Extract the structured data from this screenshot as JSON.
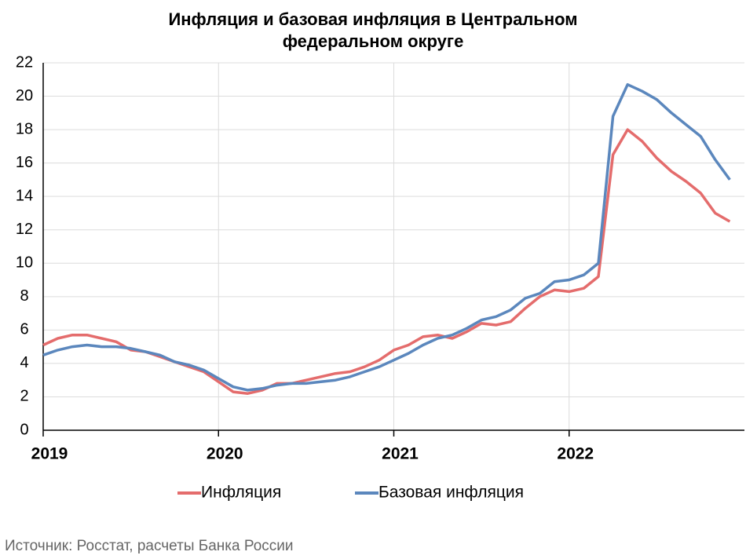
{
  "chart_data": {
    "type": "line",
    "title": "Инфляция и базовая инфляция в Центральном федеральном округе",
    "categories": [
      "2019",
      null,
      null,
      null,
      null,
      null,
      null,
      null,
      null,
      null,
      null,
      null,
      "2020",
      null,
      null,
      null,
      null,
      null,
      null,
      null,
      null,
      null,
      null,
      null,
      "2021",
      null,
      null,
      null,
      null,
      null,
      null,
      null,
      null,
      null,
      null,
      null,
      "2022",
      null,
      null,
      null,
      null,
      null,
      null,
      null,
      null,
      null,
      null,
      null
    ],
    "series": [
      {
        "name": "Инфляция",
        "color": "#e46c6c",
        "values": [
          5.1,
          5.5,
          5.7,
          5.7,
          5.5,
          5.3,
          4.8,
          4.7,
          4.4,
          4.1,
          3.8,
          3.5,
          2.9,
          2.3,
          2.2,
          2.4,
          2.8,
          2.8,
          3.0,
          3.2,
          3.4,
          3.5,
          3.8,
          4.2,
          4.8,
          5.1,
          5.6,
          5.7,
          5.5,
          5.9,
          6.4,
          6.3,
          6.5,
          7.3,
          8.0,
          8.4,
          8.3,
          8.5,
          9.2,
          16.5,
          18.0,
          17.3,
          16.3,
          15.5,
          14.9,
          14.2,
          13.0,
          12.5
        ]
      },
      {
        "name": "Базовая инфляция",
        "color": "#5b87bd",
        "values": [
          4.5,
          4.8,
          5.0,
          5.1,
          5.0,
          5.0,
          4.9,
          4.7,
          4.5,
          4.1,
          3.9,
          3.6,
          3.1,
          2.6,
          2.4,
          2.5,
          2.7,
          2.8,
          2.8,
          2.9,
          3.0,
          3.2,
          3.5,
          3.8,
          4.2,
          4.6,
          5.1,
          5.5,
          5.7,
          6.1,
          6.6,
          6.8,
          7.2,
          7.9,
          8.2,
          8.9,
          9.0,
          9.3,
          10.0,
          18.8,
          20.7,
          20.3,
          19.8,
          19.0,
          18.3,
          17.6,
          16.2,
          15.0
        ]
      }
    ],
    "ylim": [
      0,
      22
    ],
    "yticks": [
      0,
      2,
      4,
      6,
      8,
      10,
      12,
      14,
      16,
      18,
      20,
      22
    ],
    "grid": true,
    "legend": "bottom",
    "source": "Источник: Росстат, расчеты Банка России"
  }
}
